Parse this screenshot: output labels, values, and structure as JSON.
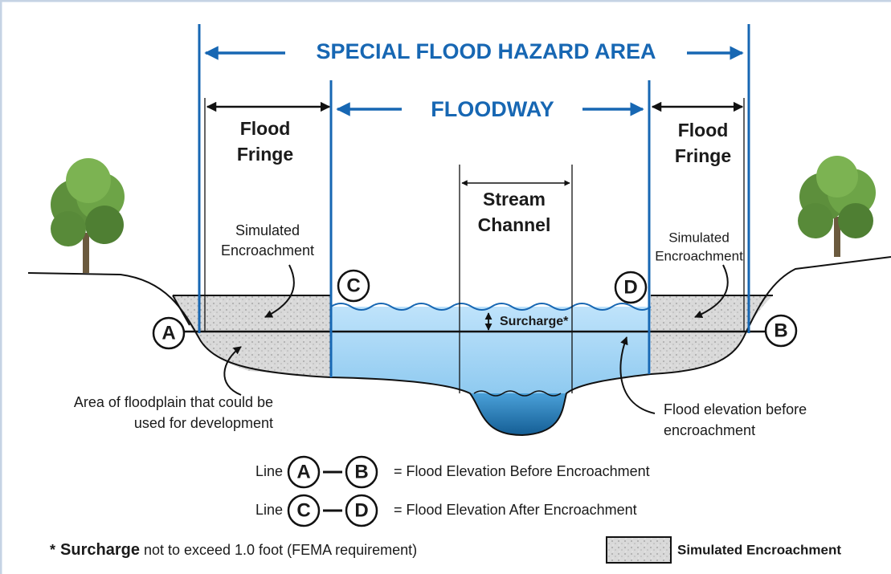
{
  "title": "SPECIAL FLOOD HAZARD AREA",
  "floodway": "FLOODWAY",
  "flood_fringe_left": [
    "Flood",
    "Fringe"
  ],
  "flood_fringe_right": [
    "Flood",
    "Fringe"
  ],
  "stream_channel": [
    "Stream",
    "Channel"
  ],
  "encroachment_left": [
    "Simulated",
    "Encroachment"
  ],
  "encroachment_right": [
    "Simulated",
    "Encroachment"
  ],
  "surcharge": "Surcharge*",
  "points": [
    "A",
    "B",
    "C",
    "D"
  ],
  "note_left": [
    "Area of floodplain that could be",
    "used for development"
  ],
  "note_right": [
    "Flood elevation before",
    "encroachment"
  ],
  "legend": [
    {
      "prefix": "Line",
      "from": "A",
      "to": "B",
      "text": "= Flood Elevation Before Encroachment"
    },
    {
      "prefix": "Line",
      "from": "C",
      "to": "D",
      "text": "= Flood Elevation After Encroachment"
    }
  ],
  "footnote": {
    "mark": "*",
    "bold": "Surcharge",
    "rest": "not to exceed 1.0 foot (FEMA requirement)"
  },
  "key": "Simulated Encroachment"
}
